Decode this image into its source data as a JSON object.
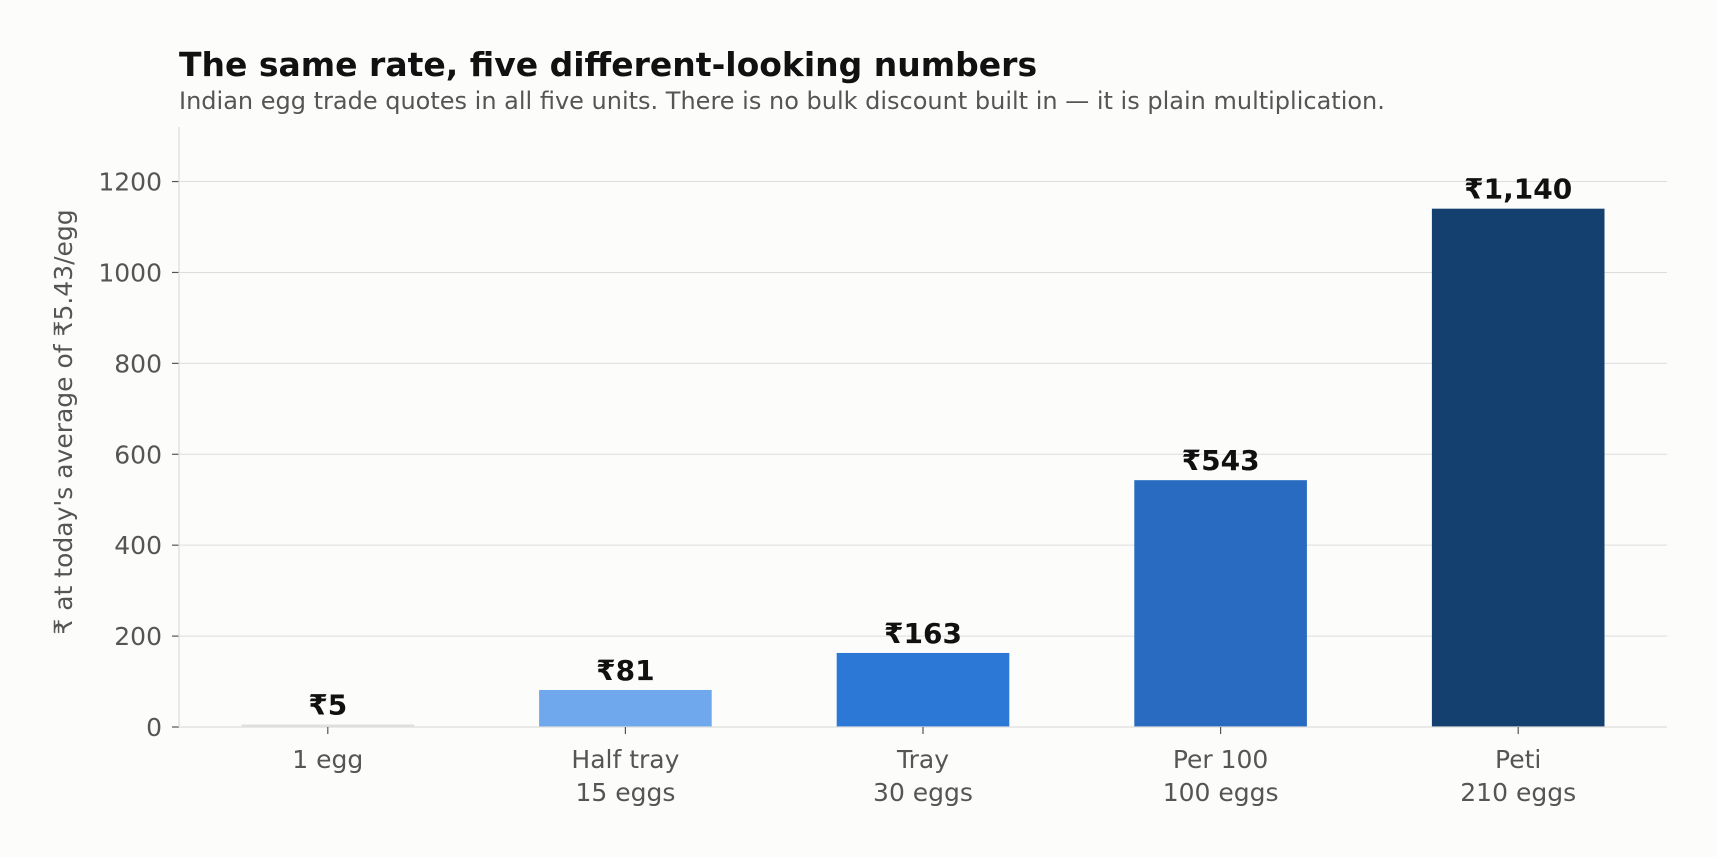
{
  "chart_data": {
    "type": "bar",
    "title": "The same rate, five different-looking numbers",
    "subtitle": "Indian egg trade quotes in all five units. There is no bulk discount built in — it is plain multiplication.",
    "xlabel": "",
    "ylabel": "₹ at today's average of ₹5.43/egg",
    "categories": [
      [
        "1 egg"
      ],
      [
        "Half tray",
        "15 eggs"
      ],
      [
        "Tray",
        "30 eggs"
      ],
      [
        "Per 100",
        "100 eggs"
      ],
      [
        "Peti",
        "210 eggs"
      ]
    ],
    "values": [
      5.43,
      81.45,
      162.9,
      543,
      1140.3
    ],
    "data_labels": [
      "₹5",
      "₹81",
      "₹163",
      "₹543",
      "₹1,140"
    ],
    "colors": [
      "#e0e0e0",
      "#6fa8ec",
      "#2b78d6",
      "#286bc0",
      "#13406f"
    ],
    "ylim": [
      0,
      1320
    ],
    "yticks": [
      0,
      200,
      400,
      600,
      800,
      1000,
      1200
    ],
    "grid": true,
    "legend": "none"
  }
}
